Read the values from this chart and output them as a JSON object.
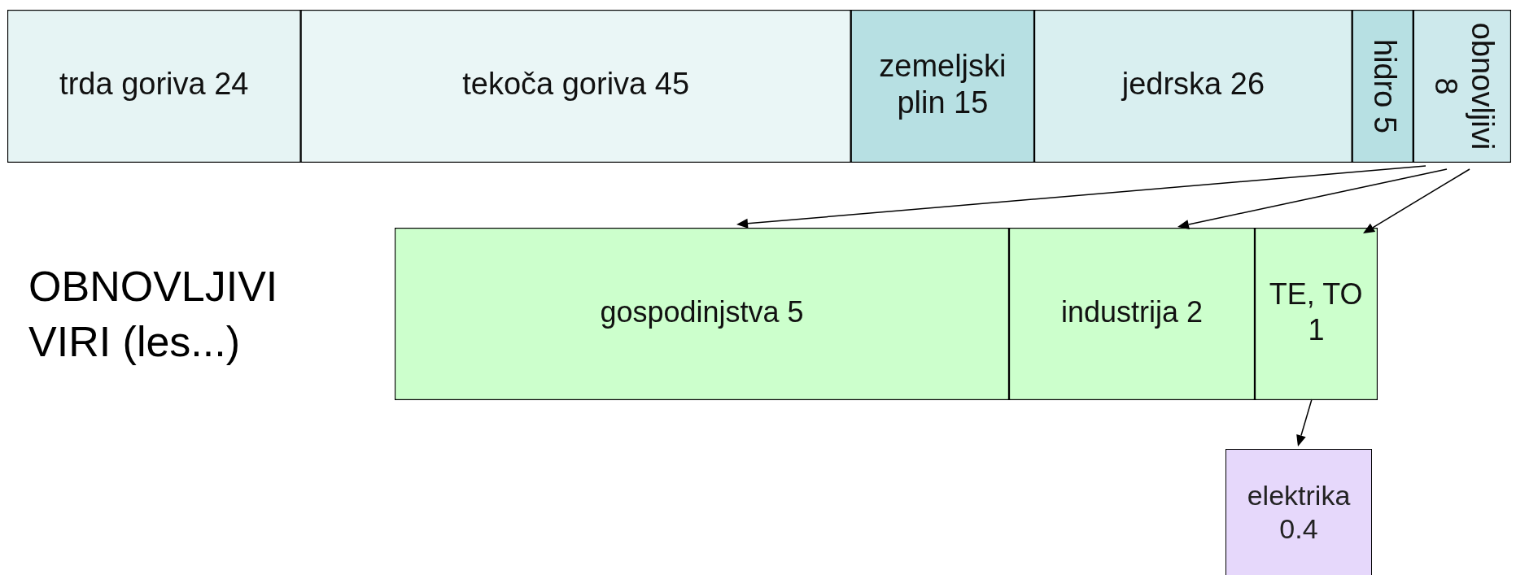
{
  "chart_data": [
    {
      "type": "bar",
      "orientation": "horizontal",
      "stacked": true,
      "categories": [
        null
      ],
      "tick_labels": false,
      "data_labels": true,
      "series": [
        {
          "name": "trda goriva",
          "color": "#e6f4f4",
          "values": [
            24
          ]
        },
        {
          "name": "tekoča goriva",
          "color": "#eaf6f6",
          "values": [
            45
          ]
        },
        {
          "name": "zemeljski plin",
          "color": "#b7e0e3",
          "values": [
            15
          ]
        },
        {
          "name": "jedrska",
          "color": "#d9eff0",
          "values": [
            26
          ]
        },
        {
          "name": "hidro",
          "color": "#b7e0e3",
          "values": [
            5
          ]
        },
        {
          "name": "obnovljivi",
          "color": "#cde9ec",
          "values": [
            8
          ]
        }
      ]
    },
    {
      "type": "bar",
      "orientation": "horizontal",
      "stacked": true,
      "title": "OBNOVLJIVI VIRI (les...)",
      "categories": [
        null
      ],
      "tick_labels": false,
      "data_labels": true,
      "series": [
        {
          "name": "gospodinjstva",
          "color": "#ccffcc",
          "values": [
            5
          ]
        },
        {
          "name": "industrija",
          "color": "#ccffcc",
          "values": [
            2
          ]
        },
        {
          "name": "TE, TO",
          "color": "#ccffcc",
          "values": [
            1
          ]
        }
      ]
    },
    {
      "type": "other",
      "annotations": [
        "elektrika",
        "0.4"
      ]
    }
  ]
}
